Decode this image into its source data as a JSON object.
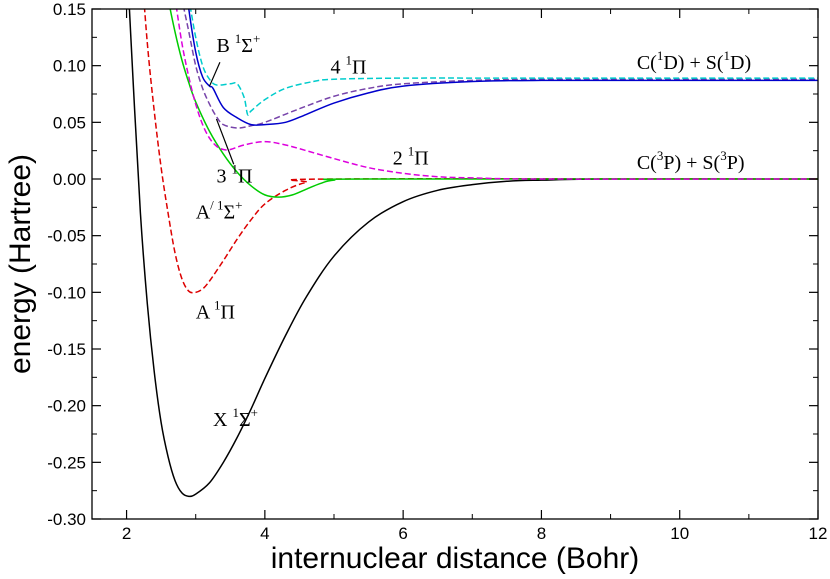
{
  "chart_data": {
    "type": "line",
    "xlabel": "internuclear distance (Bohr)",
    "ylabel": "energy (Hartree)",
    "xlim": [
      1.5,
      12
    ],
    "ylim": [
      -0.3,
      0.15
    ],
    "grid": false,
    "legend": "none",
    "x_ticks": [
      {
        "value": 2,
        "label": "2"
      },
      {
        "value": 4,
        "label": "4"
      },
      {
        "value": 6,
        "label": "6"
      },
      {
        "value": 8,
        "label": "8"
      },
      {
        "value": 10,
        "label": "10"
      },
      {
        "value": 12,
        "label": "12"
      }
    ],
    "y_ticks": [
      {
        "value": 0.15,
        "label": "0.15"
      },
      {
        "value": 0.1,
        "label": "0.10"
      },
      {
        "value": 0.05,
        "label": "0.05"
      },
      {
        "value": 0.0,
        "label": "0.00"
      },
      {
        "value": -0.05,
        "label": "-0.05"
      },
      {
        "value": -0.1,
        "label": "-0.10"
      },
      {
        "value": -0.15,
        "label": "-0.15"
      },
      {
        "value": -0.2,
        "label": "-0.20"
      },
      {
        "value": -0.25,
        "label": "-0.25"
      },
      {
        "value": -0.3,
        "label": "-0.30"
      }
    ],
    "series": [
      {
        "label_key": "X",
        "color": "#000000",
        "dash": "solid",
        "points": [
          [
            2.0,
            0.2
          ],
          [
            2.1,
            0.08
          ],
          [
            2.2,
            -0.03
          ],
          [
            2.3,
            -0.11
          ],
          [
            2.4,
            -0.17
          ],
          [
            2.5,
            -0.215
          ],
          [
            2.6,
            -0.245
          ],
          [
            2.7,
            -0.266
          ],
          [
            2.8,
            -0.277
          ],
          [
            2.9,
            -0.28
          ],
          [
            3.0,
            -0.278
          ],
          [
            3.2,
            -0.268
          ],
          [
            3.4,
            -0.25
          ],
          [
            3.6,
            -0.228
          ],
          [
            3.8,
            -0.203
          ],
          [
            4.0,
            -0.176
          ],
          [
            4.3,
            -0.138
          ],
          [
            4.6,
            -0.104
          ],
          [
            5.0,
            -0.068
          ],
          [
            5.5,
            -0.038
          ],
          [
            6.0,
            -0.02
          ],
          [
            6.5,
            -0.01
          ],
          [
            7.0,
            -0.005
          ],
          [
            7.5,
            -0.002
          ],
          [
            8.0,
            -0.001
          ],
          [
            9.0,
            0.0
          ],
          [
            12.0,
            0.0
          ]
        ]
      },
      {
        "label_key": "A",
        "color": "#dd0000",
        "dash": "dashed",
        "points": [
          [
            2.2,
            0.2
          ],
          [
            2.3,
            0.12
          ],
          [
            2.4,
            0.06
          ],
          [
            2.5,
            0.01
          ],
          [
            2.6,
            -0.03
          ],
          [
            2.7,
            -0.065
          ],
          [
            2.8,
            -0.088
          ],
          [
            2.9,
            -0.099
          ],
          [
            3.0,
            -0.1
          ],
          [
            3.1,
            -0.097
          ],
          [
            3.2,
            -0.09
          ],
          [
            3.4,
            -0.072
          ],
          [
            3.6,
            -0.053
          ],
          [
            3.8,
            -0.036
          ],
          [
            4.0,
            -0.022
          ],
          [
            4.3,
            -0.01
          ],
          [
            4.6,
            -0.003
          ],
          [
            5.0,
            0.0
          ],
          [
            12.0,
            0.0
          ]
        ]
      },
      {
        "label_key": "Aprime",
        "color": "#00cc00",
        "dash": "solid",
        "points": [
          [
            2.5,
            0.2
          ],
          [
            2.6,
            0.16
          ],
          [
            2.7,
            0.13
          ],
          [
            2.8,
            0.105
          ],
          [
            2.9,
            0.085
          ],
          [
            3.0,
            0.068
          ],
          [
            3.2,
            0.042
          ],
          [
            3.4,
            0.022
          ],
          [
            3.6,
            0.006
          ],
          [
            3.8,
            -0.006
          ],
          [
            4.0,
            -0.014
          ],
          [
            4.2,
            -0.016
          ],
          [
            4.4,
            -0.014
          ],
          [
            4.6,
            -0.009
          ],
          [
            4.8,
            -0.004
          ],
          [
            5.0,
            -0.001
          ],
          [
            5.5,
            0.0
          ],
          [
            12.0,
            0.0
          ]
        ]
      },
      {
        "label_key": "twoPi",
        "color": "#dd00dd",
        "dash": "dashed",
        "points": [
          [
            2.6,
            0.2
          ],
          [
            2.7,
            0.16
          ],
          [
            2.8,
            0.12
          ],
          [
            2.9,
            0.09
          ],
          [
            3.0,
            0.066
          ],
          [
            3.1,
            0.048
          ],
          [
            3.2,
            0.036
          ],
          [
            3.3,
            0.029
          ],
          [
            3.4,
            0.026
          ],
          [
            3.5,
            0.026
          ],
          [
            3.7,
            0.03
          ],
          [
            4.0,
            0.033
          ],
          [
            4.3,
            0.03
          ],
          [
            4.6,
            0.025
          ],
          [
            5.0,
            0.018
          ],
          [
            5.5,
            0.01
          ],
          [
            6.0,
            0.005
          ],
          [
            6.5,
            0.002
          ],
          [
            7.0,
            0.001
          ],
          [
            8.0,
            0.0
          ],
          [
            12.0,
            0.0
          ]
        ]
      },
      {
        "label_key": "threePi",
        "color": "#7744aa",
        "dash": "dashed",
        "points": [
          [
            2.7,
            0.2
          ],
          [
            2.8,
            0.16
          ],
          [
            2.9,
            0.13
          ],
          [
            3.0,
            0.1
          ],
          [
            3.1,
            0.08
          ],
          [
            3.2,
            0.066
          ],
          [
            3.3,
            0.055
          ],
          [
            3.4,
            0.048
          ],
          [
            3.6,
            0.045
          ],
          [
            3.8,
            0.047
          ],
          [
            4.0,
            0.05
          ],
          [
            4.5,
            0.062
          ],
          [
            5.0,
            0.073
          ],
          [
            5.5,
            0.08
          ],
          [
            6.0,
            0.084
          ],
          [
            7.0,
            0.087
          ],
          [
            8.0,
            0.088
          ],
          [
            10.0,
            0.088
          ],
          [
            12.0,
            0.088
          ]
        ]
      },
      {
        "label_key": "fourPi",
        "color": "#00cccc",
        "dash": "dashed",
        "points": [
          [
            2.8,
            0.2
          ],
          [
            2.9,
            0.16
          ],
          [
            3.0,
            0.125
          ],
          [
            3.1,
            0.1
          ],
          [
            3.2,
            0.088
          ],
          [
            3.3,
            0.083
          ],
          [
            3.5,
            0.084
          ],
          [
            3.6,
            0.084
          ],
          [
            3.7,
            0.072
          ],
          [
            3.75,
            0.057
          ],
          [
            3.8,
            0.06
          ],
          [
            4.0,
            0.07
          ],
          [
            4.3,
            0.08
          ],
          [
            4.7,
            0.086
          ],
          [
            5.0,
            0.088
          ],
          [
            6.0,
            0.089
          ],
          [
            8.0,
            0.089
          ],
          [
            12.0,
            0.089
          ]
        ]
      },
      {
        "label_key": "B",
        "color": "#0000cc",
        "dash": "solid",
        "points": [
          [
            2.8,
            0.2
          ],
          [
            2.9,
            0.15
          ],
          [
            3.0,
            0.112
          ],
          [
            3.1,
            0.09
          ],
          [
            3.2,
            0.082
          ],
          [
            3.25,
            0.08
          ],
          [
            3.4,
            0.063
          ],
          [
            3.6,
            0.054
          ],
          [
            3.8,
            0.048
          ],
          [
            4.0,
            0.048
          ],
          [
            4.3,
            0.05
          ],
          [
            4.6,
            0.057
          ],
          [
            5.0,
            0.067
          ],
          [
            5.5,
            0.076
          ],
          [
            6.0,
            0.082
          ],
          [
            7.0,
            0.086
          ],
          [
            8.0,
            0.087
          ],
          [
            10.0,
            0.087
          ],
          [
            12.0,
            0.087
          ]
        ]
      }
    ],
    "annotations": [
      {
        "key": "X",
        "main": "X ",
        "sup": "1",
        "rest": "Σ",
        "sup2": "+",
        "x": 3.25,
        "y": -0.218
      },
      {
        "key": "A",
        "main": "A ",
        "sup": "1",
        "rest": "Π",
        "sup2": "",
        "x": 3.0,
        "y": -0.123
      },
      {
        "key": "Aprime",
        "main": "A",
        "sup": "/ 1",
        "rest": "Σ",
        "sup2": "+",
        "x": 3.0,
        "y": -0.035
      },
      {
        "key": "threePi",
        "main": "3 ",
        "sup": "1",
        "rest": "Π",
        "sup2": "",
        "x": 3.3,
        "y": -0.003
      },
      {
        "key": "twoPi",
        "main": "2 ",
        "sup": "1",
        "rest": "Π",
        "sup2": "",
        "x": 5.85,
        "y": 0.013
      },
      {
        "key": "B",
        "main": "B ",
        "sup": "1",
        "rest": "Σ",
        "sup2": "+",
        "x": 3.3,
        "y": 0.112
      },
      {
        "key": "fourPi",
        "main": "4 ",
        "sup": "1",
        "rest": "Π",
        "sup2": "",
        "x": 4.95,
        "y": 0.093
      },
      {
        "key": "asym_top",
        "main": "C(",
        "sup": "1",
        "rest": "D) + S(",
        "sup2": "1",
        "rest2": "D)",
        "x": 9.38,
        "y": 0.097
      },
      {
        "key": "asym_bottom",
        "main": "C(",
        "sup": "3",
        "rest": "P) + S(",
        "sup2": "3",
        "rest2": "P)",
        "x": 9.38,
        "y": 0.009
      }
    ],
    "pointer_lines": [
      {
        "key": "B",
        "from": [
          3.35,
          0.103
        ],
        "to": [
          3.2,
          0.082
        ]
      },
      {
        "key": "threePi",
        "from": [
          3.55,
          0.013
        ],
        "to": [
          3.3,
          0.053
        ]
      }
    ]
  }
}
